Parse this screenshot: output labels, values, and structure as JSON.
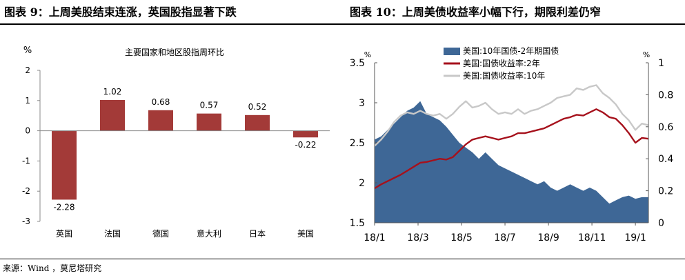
{
  "titles": {
    "left": "图表 9：上周美股结束连涨，英国股指显著下跌",
    "right": "图表 10：上周美债收益率小幅下行，期限利差仍窄"
  },
  "source": "来源：Wind ，莫尼塔研究",
  "colors": {
    "bar": "#A33A38",
    "spread": "#3E6796",
    "yield2": "#A6111C",
    "yield10": "#C8C8C8"
  },
  "chart_data": [
    {
      "type": "bar",
      "title": "主要国家和地区股指周环比",
      "ylabel": "%",
      "ylim": [
        -3,
        2
      ],
      "yticks": [
        2,
        1,
        0,
        -1,
        -2,
        -3
      ],
      "categories": [
        "英国",
        "法国",
        "德国",
        "意大利",
        "日本",
        "美国"
      ],
      "values": [
        -2.28,
        1.02,
        0.68,
        0.57,
        0.52,
        -0.22
      ],
      "data_labels": [
        "-2.28",
        "1.02",
        "0.68",
        "0.57",
        "0.52",
        "-0.22"
      ]
    },
    {
      "type": "line",
      "left_axis": {
        "label": "%",
        "range": [
          1.5,
          3.5
        ],
        "ticks": [
          3.5,
          3,
          2.5,
          2,
          1.5
        ]
      },
      "right_axis": {
        "label": "%",
        "range": [
          0,
          1
        ],
        "ticks": [
          1,
          0.8,
          0.6,
          0.4,
          0.2,
          0
        ]
      },
      "x_ticks": [
        "18/1",
        "18/3",
        "18/5",
        "18/7",
        "18/9",
        "18/11",
        "19/1"
      ],
      "legend": [
        "美国:10年国债-2年期国债",
        "美国:国债收益率:2年",
        "美国:国债收益率:10年"
      ],
      "series": [
        {
          "name": "美国:10年国债-2年期国债",
          "kind": "area",
          "axis": "right",
          "x": [
            0,
            0.3,
            0.6,
            0.9,
            1.2,
            1.5,
            1.8,
            2.1,
            2.4,
            2.7,
            3,
            3.3,
            3.6,
            3.9,
            4.2,
            4.5,
            4.8,
            5.1,
            5.4,
            5.7,
            6,
            6.3,
            6.6,
            6.9,
            7.2,
            7.5,
            7.8,
            8.1,
            8.4,
            8.7,
            9,
            9.3,
            9.6,
            9.9,
            10.2,
            10.5,
            10.8,
            11.1,
            11.4,
            11.7,
            12,
            12.3,
            12.6
          ],
          "values": [
            0.52,
            0.54,
            0.58,
            0.62,
            0.66,
            0.7,
            0.72,
            0.76,
            0.68,
            0.66,
            0.64,
            0.6,
            0.55,
            0.5,
            0.47,
            0.44,
            0.4,
            0.44,
            0.4,
            0.36,
            0.34,
            0.32,
            0.3,
            0.28,
            0.26,
            0.24,
            0.26,
            0.22,
            0.2,
            0.22,
            0.24,
            0.22,
            0.2,
            0.22,
            0.2,
            0.16,
            0.12,
            0.14,
            0.16,
            0.17,
            0.15,
            0.16,
            0.16
          ]
        },
        {
          "name": "美国:国债收益率:2年",
          "kind": "line",
          "axis": "left",
          "x": [
            0,
            0.3,
            0.6,
            0.9,
            1.2,
            1.5,
            1.8,
            2.1,
            2.4,
            2.7,
            3,
            3.3,
            3.6,
            3.9,
            4.2,
            4.5,
            4.8,
            5.1,
            5.4,
            5.7,
            6,
            6.3,
            6.6,
            6.9,
            7.2,
            7.5,
            7.8,
            8.1,
            8.4,
            8.7,
            9,
            9.3,
            9.6,
            9.9,
            10.2,
            10.5,
            10.8,
            11.1,
            11.4,
            11.7,
            12,
            12.3,
            12.6
          ],
          "values": [
            1.93,
            1.98,
            2.02,
            2.06,
            2.1,
            2.15,
            2.2,
            2.25,
            2.26,
            2.28,
            2.3,
            2.29,
            2.32,
            2.4,
            2.48,
            2.54,
            2.56,
            2.58,
            2.56,
            2.54,
            2.56,
            2.58,
            2.62,
            2.62,
            2.64,
            2.66,
            2.68,
            2.72,
            2.76,
            2.8,
            2.82,
            2.85,
            2.84,
            2.88,
            2.92,
            2.88,
            2.82,
            2.8,
            2.72,
            2.62,
            2.5,
            2.56,
            2.55
          ]
        },
        {
          "name": "美国:国债收益率:10年",
          "kind": "line",
          "axis": "left",
          "x": [
            0,
            0.3,
            0.6,
            0.9,
            1.2,
            1.5,
            1.8,
            2.1,
            2.4,
            2.7,
            3,
            3.3,
            3.6,
            3.9,
            4.2,
            4.5,
            4.8,
            5.1,
            5.4,
            5.7,
            6,
            6.3,
            6.6,
            6.9,
            7.2,
            7.5,
            7.8,
            8.1,
            8.4,
            8.7,
            9,
            9.3,
            9.6,
            9.9,
            10.2,
            10.5,
            10.8,
            11.1,
            11.4,
            11.7,
            12,
            12.3,
            12.6
          ],
          "values": [
            2.46,
            2.54,
            2.64,
            2.76,
            2.84,
            2.88,
            2.86,
            2.9,
            2.86,
            2.84,
            2.86,
            2.8,
            2.86,
            2.95,
            3.02,
            2.94,
            2.96,
            3.0,
            2.92,
            2.86,
            2.88,
            2.86,
            2.92,
            2.86,
            2.9,
            2.92,
            2.96,
            3.0,
            3.06,
            3.08,
            3.1,
            3.18,
            3.16,
            3.2,
            3.22,
            3.12,
            3.06,
            2.98,
            2.86,
            2.78,
            2.66,
            2.74,
            2.72
          ]
        }
      ]
    }
  ]
}
